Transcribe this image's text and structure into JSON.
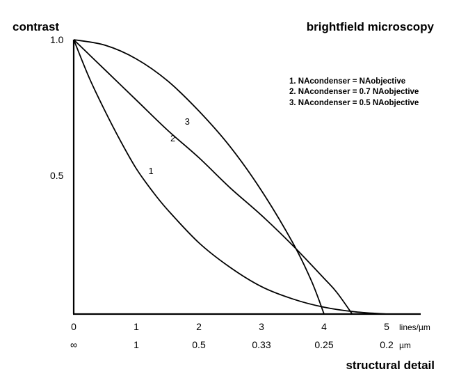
{
  "chart_data": {
    "type": "line",
    "title": "brightfield microscopy",
    "ylabel": "contrast",
    "xlabel": "structural detail",
    "xlim": [
      0,
      5.5
    ],
    "ylim": [
      0,
      1.0
    ],
    "x_unit_primary": "lines/µm",
    "x_unit_secondary": "µm",
    "x_ticks_primary": [
      "0",
      "1",
      "2",
      "3",
      "4",
      "5"
    ],
    "x_ticks_secondary": [
      "∞",
      "1",
      "0.5",
      "0.33",
      "0.25",
      "0.2"
    ],
    "y_ticks": [
      "1.0",
      "0.5"
    ],
    "legend": [
      "1. NAcondenser = NAobjective",
      "2. NAcondenser = 0.7 NAobjective",
      "3. NAcondenser = 0.5 NAobjective"
    ],
    "legend_position": "top-right",
    "series": [
      {
        "label": "1",
        "x": [
          0,
          0.25,
          0.5,
          0.75,
          1.0,
          1.25,
          1.5,
          2.0,
          2.5,
          3.0,
          3.5,
          4.0,
          4.5,
          5.0
        ],
        "y": [
          1.0,
          0.86,
          0.74,
          0.63,
          0.53,
          0.45,
          0.38,
          0.26,
          0.17,
          0.1,
          0.055,
          0.025,
          0.008,
          0.0
        ]
      },
      {
        "label": "2",
        "x": [
          0,
          0.5,
          1.0,
          1.5,
          2.0,
          2.5,
          3.0,
          3.5,
          4.0,
          4.2,
          4.45
        ],
        "y": [
          1.0,
          0.89,
          0.78,
          0.67,
          0.57,
          0.46,
          0.36,
          0.25,
          0.13,
          0.08,
          0.0
        ]
      },
      {
        "label": "3",
        "x": [
          0,
          0.5,
          1.0,
          1.5,
          2.0,
          2.5,
          3.0,
          3.5,
          3.8,
          4.0
        ],
        "y": [
          1.0,
          0.98,
          0.93,
          0.85,
          0.74,
          0.61,
          0.45,
          0.26,
          0.12,
          0.0
        ]
      }
    ]
  }
}
